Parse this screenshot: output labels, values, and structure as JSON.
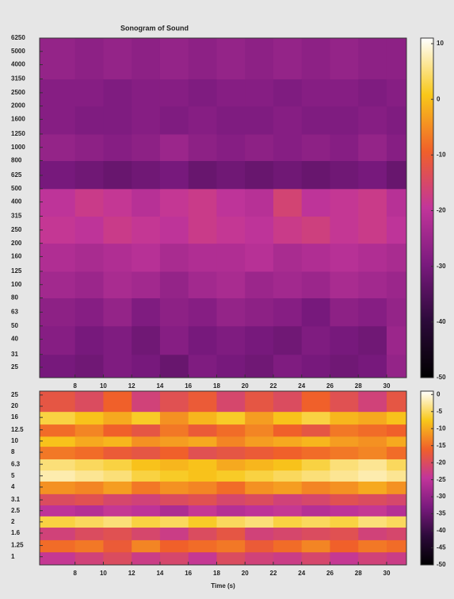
{
  "chart_data": [
    {
      "type": "heatmap",
      "title": "Sonogram of Sound",
      "x_edges": [
        5.5,
        8,
        10,
        12,
        14,
        16,
        18,
        20,
        22,
        24,
        26,
        28,
        30,
        31.4
      ],
      "y_edges": [
        21,
        31,
        50,
        80,
        125,
        200,
        315,
        500,
        800,
        1250,
        2000,
        3150,
        6250
      ],
      "z": [
        [
          -30,
          -31,
          -29,
          -30,
          -32,
          -29,
          -30,
          -31,
          -29,
          -30,
          -31,
          -30,
          -26
        ],
        [
          -28,
          -30,
          -29,
          -31,
          -28,
          -30,
          -29,
          -30,
          -31,
          -29,
          -30,
          -31,
          -25
        ],
        [
          -27,
          -28,
          -26,
          -29,
          -27,
          -28,
          -26,
          -27,
          -28,
          -30,
          -27,
          -28,
          -26
        ],
        [
          -24,
          -25,
          -23,
          -24,
          -26,
          -24,
          -23,
          -25,
          -24,
          -25,
          -23,
          -24,
          -25
        ],
        [
          -22,
          -23,
          -22,
          -21,
          -23,
          -22,
          -22,
          -21,
          -23,
          -22,
          -21,
          -22,
          -23
        ],
        [
          -19,
          -20,
          -18,
          -19,
          -20,
          -18,
          -19,
          -20,
          -18,
          -17,
          -19,
          -18,
          -20
        ],
        [
          -20,
          -18,
          -19,
          -21,
          -19,
          -18,
          -20,
          -21,
          -16,
          -20,
          -19,
          -18,
          -21
        ],
        [
          -30,
          -31,
          -32,
          -31,
          -30,
          -32,
          -31,
          -32,
          -31,
          -32,
          -31,
          -30,
          -32
        ],
        [
          -26,
          -27,
          -28,
          -27,
          -25,
          -27,
          -28,
          -27,
          -28,
          -27,
          -28,
          -26,
          -28
        ],
        [
          -28,
          -29,
          -29,
          -28,
          -29,
          -28,
          -29,
          -29,
          -28,
          -29,
          -29,
          -28,
          -29
        ],
        [
          -28,
          -28,
          -29,
          -28,
          -28,
          -29,
          -28,
          -28,
          -29,
          -28,
          -28,
          -29,
          -28
        ],
        [
          -26,
          -27,
          -26,
          -27,
          -26,
          -27,
          -26,
          -27,
          -26,
          -27,
          -26,
          -27,
          -27
        ]
      ],
      "xlim": [
        5.5,
        31.4
      ],
      "xticks": [
        8,
        10,
        12,
        14,
        16,
        18,
        20,
        22,
        24,
        26,
        28,
        30
      ],
      "ylim": [
        21,
        6250
      ],
      "yscale": "log",
      "yticks": [
        25,
        31,
        40,
        50,
        63,
        80,
        100,
        125,
        160,
        200,
        250,
        315,
        400,
        500,
        625,
        800,
        1000,
        1250,
        1600,
        2000,
        2500,
        3150,
        4000,
        5000,
        6250
      ],
      "clim": [
        -50,
        11
      ],
      "cticks": [
        10,
        0,
        -10,
        -20,
        -30,
        -40,
        -50
      ],
      "colormap": [
        "#000000",
        "#2c0a3a",
        "#7a1a7e",
        "#c2359a",
        "#f0602a",
        "#f8c81a",
        "#ffffff"
      ]
    },
    {
      "type": "heatmap",
      "xlabel": "Time (s)",
      "x_edges": [
        5.5,
        8,
        10,
        12,
        14,
        16,
        18,
        20,
        22,
        24,
        26,
        28,
        30,
        31.4
      ],
      "y_edges": [
        0.85,
        1.1,
        1.4,
        1.8,
        2.25,
        2.8,
        3.5,
        4.5,
        5.6,
        7,
        9,
        11,
        14,
        18,
        27
      ],
      "z": [
        [
          -24,
          -22,
          -20,
          -23,
          -21,
          -24,
          -20,
          -22,
          -23,
          -21,
          -24,
          -22,
          -23
        ],
        [
          -15,
          -14,
          -17,
          -13,
          -16,
          -15,
          -14,
          -17,
          -15,
          -13,
          -16,
          -14,
          -15
        ],
        [
          -22,
          -20,
          -19,
          -21,
          -23,
          -20,
          -18,
          -22,
          -21,
          -20,
          -19,
          -22,
          -21
        ],
        [
          -6,
          -5,
          -4,
          -6,
          -5,
          -7,
          -5,
          -4,
          -6,
          -5,
          -6,
          -4,
          -5
        ],
        [
          -25,
          -26,
          -24,
          -25,
          -27,
          -24,
          -26,
          -25,
          -24,
          -26,
          -25,
          -24,
          -26
        ],
        [
          -20,
          -19,
          -21,
          -22,
          -20,
          -19,
          -21,
          -20,
          -22,
          -21,
          -19,
          -20,
          -21
        ],
        [
          -12,
          -13,
          -11,
          -14,
          -12,
          -13,
          -15,
          -12,
          -11,
          -13,
          -12,
          -10,
          -12
        ],
        [
          -2,
          -3,
          -4,
          -6,
          -7,
          -8,
          -7,
          -6,
          -5,
          -4,
          -3,
          -2,
          -3
        ],
        [
          -4,
          -5,
          -6,
          -8,
          -9,
          -8,
          -10,
          -9,
          -8,
          -6,
          -4,
          -3,
          -5
        ],
        [
          -14,
          -15,
          -17,
          -18,
          -16,
          -19,
          -18,
          -17,
          -16,
          -15,
          -14,
          -13,
          -15
        ],
        [
          -8,
          -10,
          -9,
          -12,
          -11,
          -10,
          -13,
          -11,
          -10,
          -9,
          -11,
          -12,
          -10
        ],
        [
          -15,
          -13,
          -16,
          -18,
          -14,
          -17,
          -15,
          -13,
          -16,
          -18,
          -14,
          -15,
          -16
        ],
        [
          -6,
          -8,
          -10,
          -7,
          -12,
          -9,
          -7,
          -11,
          -8,
          -6,
          -9,
          -10,
          -8
        ],
        [
          -18,
          -20,
          -16,
          -22,
          -19,
          -17,
          -21,
          -18,
          -20,
          -16,
          -19,
          -22,
          -18
        ]
      ],
      "xlim": [
        5.5,
        31.4
      ],
      "xticks": [
        8,
        10,
        12,
        14,
        16,
        18,
        20,
        22,
        24,
        26,
        28,
        30
      ],
      "ylim": [
        0.85,
        27
      ],
      "yscale": "log",
      "yticks": [
        1,
        1.25,
        1.6,
        2,
        2.5,
        3.1,
        4,
        5,
        6.3,
        8,
        10,
        12.5,
        16,
        20,
        25
      ],
      "clim": [
        -50,
        1
      ],
      "cticks": [
        0,
        -5,
        -10,
        -15,
        -20,
        -25,
        -30,
        -35,
        -40,
        -45,
        -50
      ],
      "colormap": [
        "#000000",
        "#2c0a3a",
        "#7a1a7e",
        "#c2359a",
        "#f0602a",
        "#f8c81a",
        "#ffffff"
      ]
    }
  ]
}
